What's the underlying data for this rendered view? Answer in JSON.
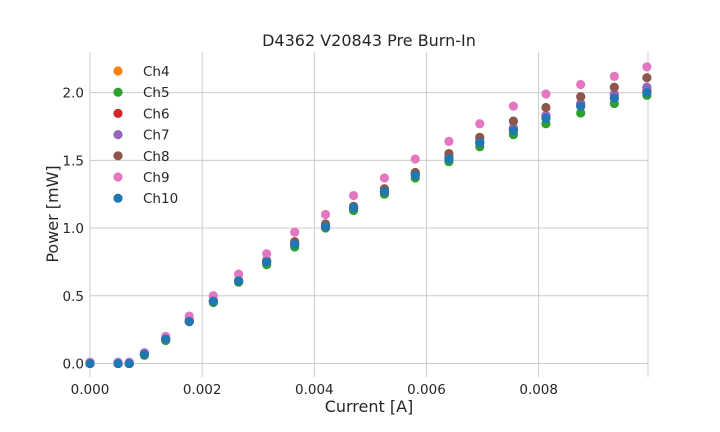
{
  "chart_data": {
    "type": "scatter",
    "title": "D4362 V20843 Pre Burn-In",
    "xlabel": "Current [A]",
    "ylabel": "Power [mW]",
    "xlim": [
      0.0,
      0.00995
    ],
    "ylim": [
      -0.1,
      2.3
    ],
    "x_ticks": [
      "0.000",
      "0.002",
      "0.004",
      "0.006",
      "0.008"
    ],
    "x_tick_values": [
      0.0,
      0.002,
      0.004,
      0.006,
      0.008
    ],
    "y_ticks": [
      "0.0",
      "0.5",
      "1.0",
      "1.5",
      "2.0"
    ],
    "y_tick_values": [
      0.0,
      0.5,
      1.0,
      1.5,
      2.0
    ],
    "grid": true,
    "legend_position": "upper-left",
    "x": [
      0.0,
      0.0005,
      0.0007,
      0.00097,
      0.00135,
      0.00177,
      0.0022,
      0.00265,
      0.00315,
      0.00365,
      0.0042,
      0.0047,
      0.00525,
      0.0058,
      0.0064,
      0.00695,
      0.00755,
      0.00813,
      0.00875,
      0.00935,
      0.00993
    ],
    "series": [
      {
        "name": "Ch4",
        "color": "#ff7f0e",
        "values": [
          0.0,
          0.0,
          0.0,
          0.07,
          0.18,
          0.31,
          0.46,
          0.61,
          0.75,
          0.88,
          1.01,
          1.15,
          1.27,
          1.39,
          1.52,
          1.63,
          1.73,
          1.83,
          1.92,
          1.98,
          2.02
        ]
      },
      {
        "name": "Ch5",
        "color": "#2ca02c",
        "values": [
          0.0,
          0.0,
          0.0,
          0.06,
          0.17,
          0.31,
          0.45,
          0.6,
          0.73,
          0.86,
          1.0,
          1.13,
          1.25,
          1.37,
          1.49,
          1.6,
          1.69,
          1.77,
          1.85,
          1.92,
          1.98
        ]
      },
      {
        "name": "Ch6",
        "color": "#d62728",
        "values": [
          0.0,
          0.0,
          0.0,
          0.07,
          0.18,
          0.31,
          0.46,
          0.61,
          0.75,
          0.88,
          1.01,
          1.15,
          1.27,
          1.4,
          1.52,
          1.63,
          1.73,
          1.82,
          1.9,
          1.96,
          2.01
        ]
      },
      {
        "name": "Ch7",
        "color": "#9467bd",
        "values": [
          0.0,
          0.0,
          0.0,
          0.07,
          0.18,
          0.31,
          0.46,
          0.61,
          0.75,
          0.88,
          1.02,
          1.15,
          1.28,
          1.4,
          1.52,
          1.64,
          1.74,
          1.83,
          1.92,
          1.99,
          2.04
        ]
      },
      {
        "name": "Ch8",
        "color": "#8c564b",
        "values": [
          0.0,
          0.0,
          0.0,
          0.07,
          0.18,
          0.32,
          0.46,
          0.61,
          0.76,
          0.9,
          1.03,
          1.16,
          1.29,
          1.41,
          1.55,
          1.67,
          1.79,
          1.89,
          1.97,
          2.04,
          2.11
        ]
      },
      {
        "name": "Ch9",
        "color": "#e377c2",
        "values": [
          0.01,
          0.01,
          0.01,
          0.08,
          0.2,
          0.35,
          0.5,
          0.66,
          0.81,
          0.97,
          1.1,
          1.24,
          1.37,
          1.51,
          1.64,
          1.77,
          1.9,
          1.99,
          2.06,
          2.12,
          2.19
        ]
      },
      {
        "name": "Ch10",
        "color": "#1f77b4",
        "values": [
          0.0,
          0.0,
          0.0,
          0.07,
          0.18,
          0.31,
          0.46,
          0.61,
          0.75,
          0.88,
          1.01,
          1.15,
          1.27,
          1.39,
          1.51,
          1.63,
          1.72,
          1.81,
          1.9,
          1.96,
          2.0
        ]
      }
    ]
  }
}
